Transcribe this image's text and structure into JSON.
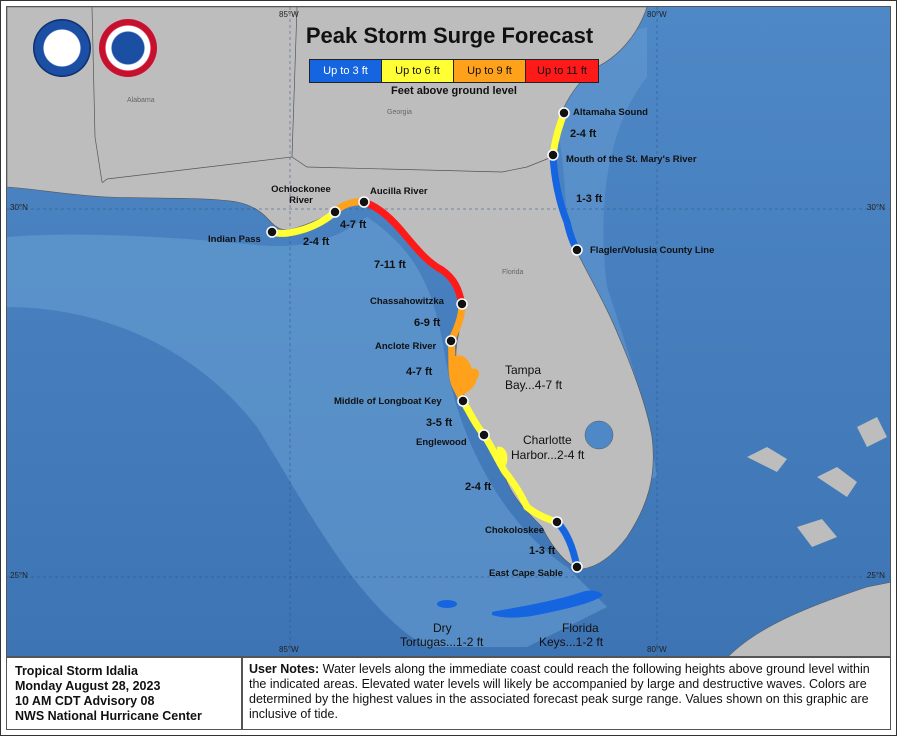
{
  "map": {
    "title": "Peak Storm Surge Forecast",
    "legend": [
      {
        "label": "Up to 3 ft",
        "color": "#1565e0"
      },
      {
        "label": "Up to 6 ft",
        "color": "#ffff33"
      },
      {
        "label": "Up to 9 ft",
        "color": "#ffa11a"
      },
      {
        "label": "Up to 11 ft",
        "color": "#ff1a1a"
      }
    ],
    "legend_note": "Feet above ground level",
    "states": {
      "alabama": "Alabama",
      "georgia": "Georgia",
      "florida": "Florida"
    },
    "gridlines": {
      "lon85_top": "85°W",
      "lon80_top": "80°W",
      "lon85_bottom": "85°W",
      "lon80_bottom": "80°W",
      "lat30_left": "30°N",
      "lat30_right": "30°N",
      "lat25_left": "25°N",
      "lat25_right": "25°N"
    },
    "points": {
      "altamaha": "Altamaha Sound",
      "st_marys": "Mouth of the St. Mary's River",
      "flagler": "Flagler/Volusia County Line",
      "ochlockonee": "Ochlockonee River",
      "aucilla": "Aucilla River",
      "indian_pass": "Indian Pass",
      "chassahowitzka": "Chassahowitzka",
      "anclote": "Anclote River",
      "longboat": "Middle of Longboat Key",
      "englewood": "Englewood",
      "chokoloskee": "Chokoloskee",
      "east_cape": "East Cape Sable"
    },
    "ranges": {
      "ga_coast": "2-4 ft",
      "ne_fl": "1-3 ft",
      "ochlockonee_aucilla": "4-7 ft",
      "indian_ochlockonee": "2-4 ft",
      "aucilla_chassa": "7-11 ft",
      "chassa_anclote": "6-9 ft",
      "anclote_longboat": "4-7 ft",
      "longboat_englewood": "3-5 ft",
      "englewood_chokoloskee": "2-4 ft",
      "chokoloskee_cape": "1-3 ft"
    },
    "areas": {
      "tampa_1": "Tampa",
      "tampa_2": "Bay...4-7 ft",
      "charlotte_1": "Charlotte",
      "charlotte_2": "Harbor...2-4 ft",
      "dry_1": "Dry",
      "dry_2": "Tortugas...1-2 ft",
      "keys_1": "Florida",
      "keys_2": "Keys...1-2 ft"
    }
  },
  "info": {
    "line1": "Tropical Storm Idalia",
    "line2": "Monday August 28, 2023",
    "line3": "10 AM CDT Advisory 08",
    "line4": "NWS National Hurricane Center"
  },
  "notes": {
    "heading": "User Notes:",
    "text": " Water levels along the immediate coast could reach the following heights above ground level within the indicated areas. Elevated water levels will likely be accompanied by large and destructive waves. Colors are determined by the highest values in the associated forecast peak surge range. Values shown on this graphic are inclusive of tide."
  }
}
